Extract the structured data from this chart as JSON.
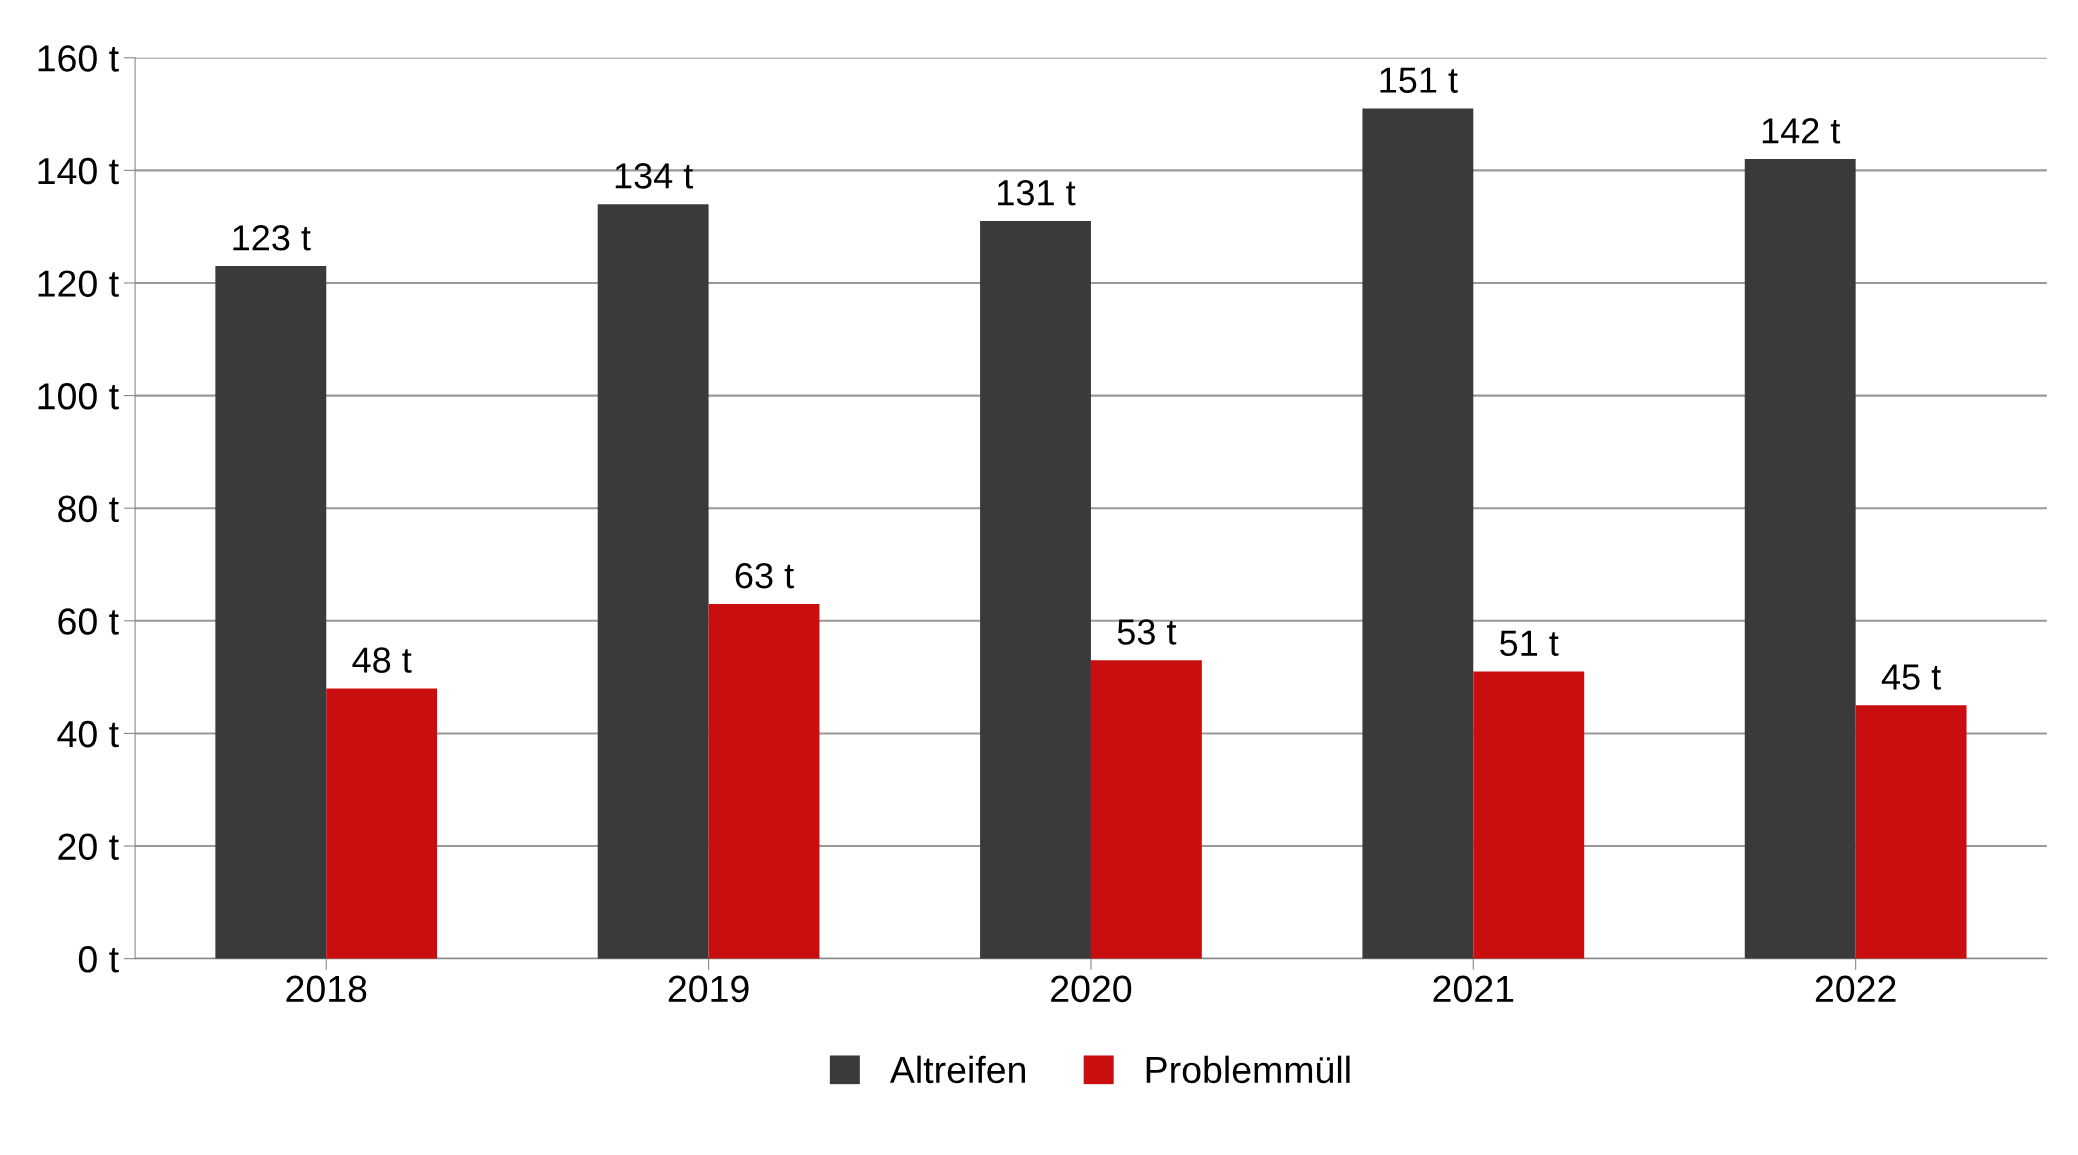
{
  "chart_data": {
    "type": "bar",
    "categories": [
      "2018",
      "2019",
      "2020",
      "2021",
      "2022"
    ],
    "series": [
      {
        "name": "Altreifen",
        "color": "#3a3a3a",
        "values": [
          123,
          134,
          131,
          151,
          142
        ],
        "value_labels": [
          "123 t",
          "134 t",
          "131 t",
          "151 t",
          "142 t"
        ]
      },
      {
        "name": "Problemmüll",
        "color": "#c80e0e",
        "values": [
          48,
          63,
          53,
          51,
          45
        ],
        "value_labels": [
          "48 t",
          "63 t",
          "53 t",
          "51 t",
          "45 t"
        ]
      }
    ],
    "ylim": [
      0,
      160
    ],
    "yticks": [
      {
        "value": 0,
        "label": "0 t"
      },
      {
        "value": 20,
        "label": "20 t"
      },
      {
        "value": 40,
        "label": "40 t"
      },
      {
        "value": 60,
        "label": "60 t"
      },
      {
        "value": 80,
        "label": "80 t"
      },
      {
        "value": 100,
        "label": "100 t"
      },
      {
        "value": 120,
        "label": "120 t"
      },
      {
        "value": 140,
        "label": "140 t"
      },
      {
        "value": 160,
        "label": "160 t"
      }
    ],
    "grid": "y",
    "legend": "bottom"
  }
}
